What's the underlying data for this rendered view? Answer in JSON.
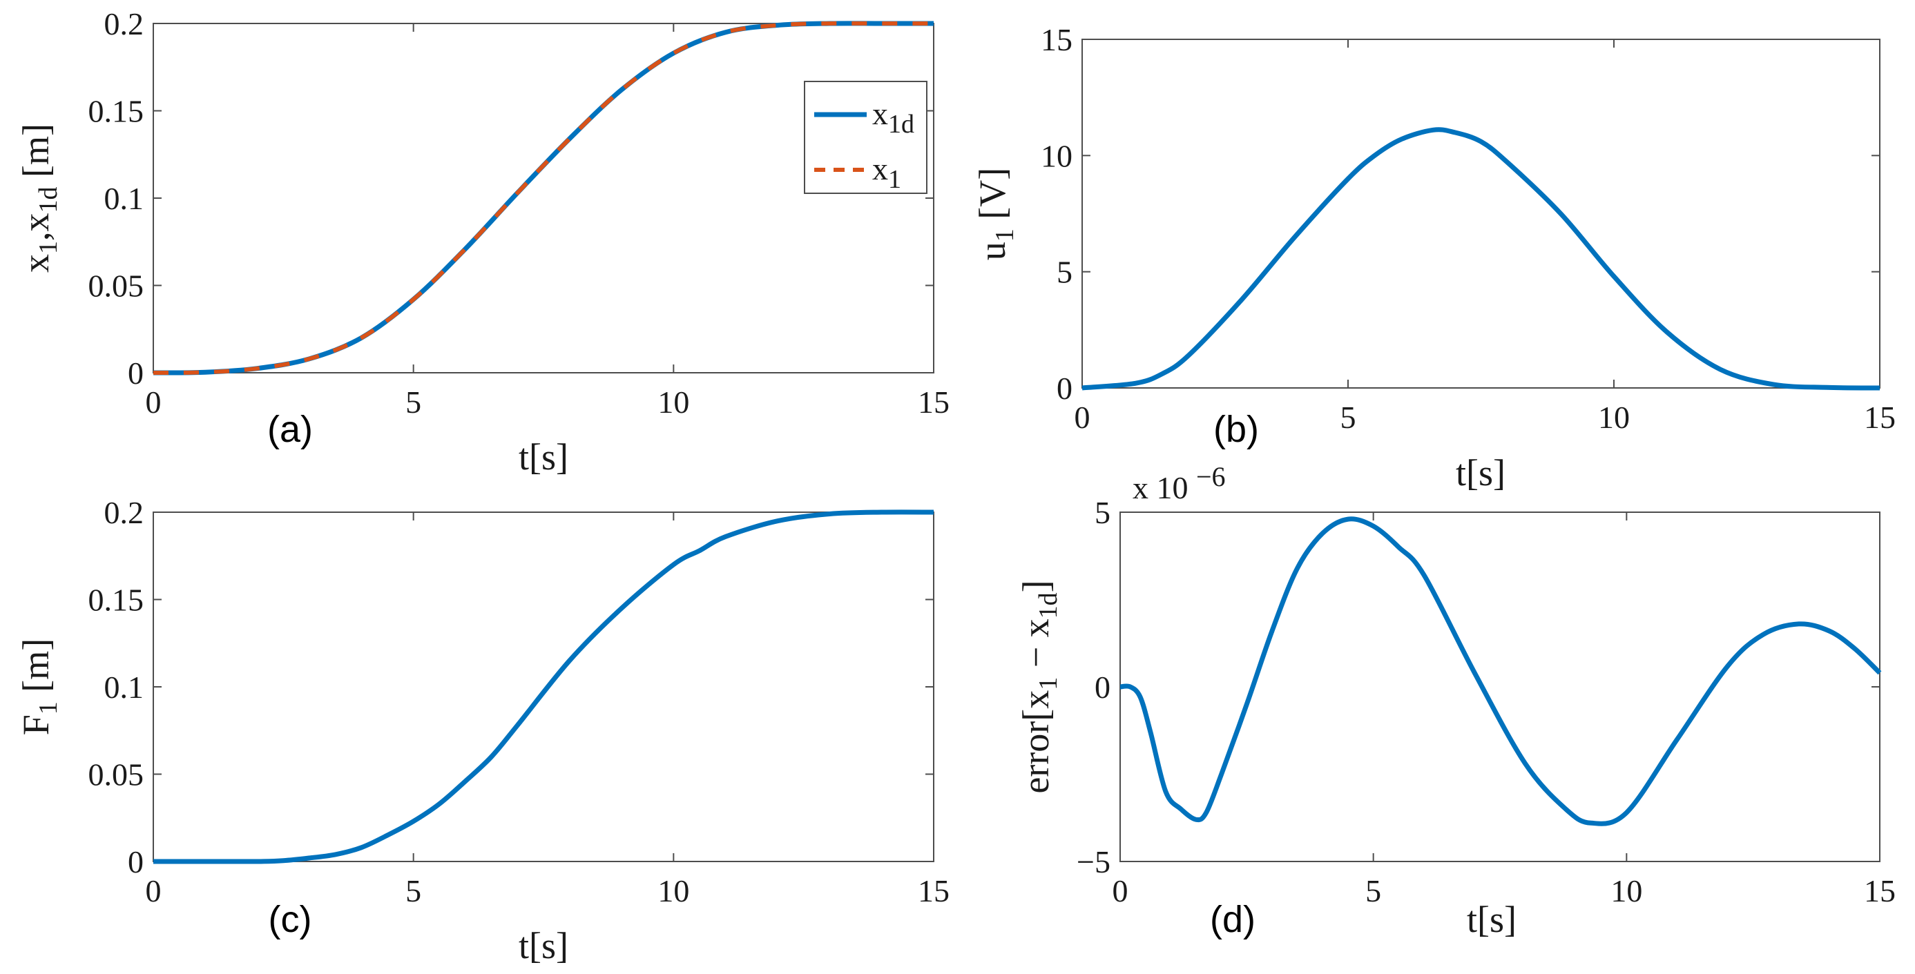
{
  "chart_data": [
    {
      "id": "a",
      "type": "line",
      "panel_label": "(a)",
      "xlabel": "t[s]",
      "ylabel": {
        "parts": [
          [
            "x",
            ""
          ],
          [
            "1",
            "sub"
          ],
          [
            ",x",
            ""
          ],
          [
            "1d",
            "sub"
          ],
          [
            " [m]",
            ""
          ]
        ]
      },
      "xlim": [
        0,
        15
      ],
      "ylim": [
        0,
        0.2
      ],
      "xticks": [
        0,
        5,
        10,
        15
      ],
      "yticks": [
        0,
        0.05,
        0.1,
        0.15,
        0.2
      ],
      "yticklabels": [
        "0",
        "0.05",
        "0.1",
        "0.15",
        "0.2"
      ],
      "grid": false,
      "legend": {
        "position": "top-right",
        "entries": [
          {
            "parts": [
              [
                "x",
                ""
              ],
              [
                "1d",
                "sub"
              ]
            ],
            "series": 0
          },
          {
            "parts": [
              [
                "x",
                ""
              ],
              [
                "1",
                "sub"
              ]
            ],
            "series": 1
          }
        ]
      },
      "series": [
        {
          "name": "x1d",
          "color": "#0072BD",
          "style": "solid",
          "x": [
            0,
            1,
            2,
            3,
            4,
            5,
            6,
            7,
            8,
            9,
            10,
            11,
            12,
            13,
            14,
            15
          ],
          "y": [
            0,
            0.0003,
            0.0025,
            0.008,
            0.02,
            0.042,
            0.071,
            0.103,
            0.134,
            0.162,
            0.183,
            0.195,
            0.199,
            0.2,
            0.2,
            0.2
          ]
        },
        {
          "name": "x1",
          "color": "#D95319",
          "style": "dashed",
          "x": [
            0,
            1,
            2,
            3,
            4,
            5,
            6,
            7,
            8,
            9,
            10,
            11,
            12,
            13,
            14,
            15
          ],
          "y": [
            0,
            0.0003,
            0.0025,
            0.008,
            0.02,
            0.042,
            0.071,
            0.103,
            0.134,
            0.162,
            0.183,
            0.195,
            0.199,
            0.2,
            0.2,
            0.2
          ]
        }
      ]
    },
    {
      "id": "b",
      "type": "line",
      "panel_label": "(b)",
      "xlabel": "t[s]",
      "ylabel": {
        "parts": [
          [
            "u",
            ""
          ],
          [
            "1",
            "sub"
          ],
          [
            " [V]",
            ""
          ]
        ]
      },
      "xlim": [
        0,
        15
      ],
      "ylim": [
        0,
        15
      ],
      "xticks": [
        0,
        5,
        10,
        15
      ],
      "yticks": [
        0,
        5,
        10,
        15
      ],
      "yticklabels": [
        "0",
        "5",
        "10",
        "15"
      ],
      "grid": false,
      "series": [
        {
          "color": "#0072BD",
          "style": "solid",
          "x": [
            0,
            1,
            1.5,
            2,
            3,
            4,
            5,
            5.5,
            6,
            6.6,
            7,
            7.5,
            8,
            9,
            10,
            11,
            12,
            13,
            14,
            15
          ],
          "y": [
            0,
            0.2,
            0.6,
            1.4,
            3.8,
            6.5,
            9.0,
            10.0,
            10.7,
            11.1,
            11.0,
            10.6,
            9.7,
            7.5,
            4.8,
            2.4,
            0.8,
            0.15,
            0.02,
            0
          ]
        }
      ]
    },
    {
      "id": "c",
      "type": "line",
      "panel_label": "(c)",
      "xlabel": "t[s]",
      "ylabel": {
        "parts": [
          [
            "F",
            ""
          ],
          [
            "1",
            "sub"
          ],
          [
            " [m]",
            ""
          ]
        ]
      },
      "xlim": [
        0,
        15
      ],
      "ylim": [
        0,
        0.2
      ],
      "xticks": [
        0,
        5,
        10,
        15
      ],
      "yticks": [
        0,
        0.05,
        0.1,
        0.15,
        0.2
      ],
      "yticklabels": [
        "0",
        "0.05",
        "0.1",
        "0.15",
        "0.2"
      ],
      "grid": false,
      "series": [
        {
          "color": "#0072BD",
          "style": "solid",
          "x": [
            0,
            1,
            2,
            2.5,
            3,
            3.5,
            4,
            4.5,
            5,
            5.5,
            6,
            6.5,
            7,
            8,
            9,
            10,
            10.5,
            11,
            12,
            13,
            14,
            15
          ],
          "y": [
            0,
            0,
            0,
            0.0005,
            0.002,
            0.004,
            0.008,
            0.015,
            0.023,
            0.033,
            0.046,
            0.06,
            0.078,
            0.115,
            0.145,
            0.17,
            0.178,
            0.186,
            0.195,
            0.199,
            0.2,
            0.2
          ]
        }
      ]
    },
    {
      "id": "d",
      "type": "line",
      "panel_label": "(d)",
      "xlabel": "t[s]",
      "ylabel": {
        "parts": [
          [
            "error[x",
            ""
          ],
          [
            "1",
            "sub"
          ],
          [
            " − x",
            ""
          ],
          [
            "1d",
            "sub"
          ],
          [
            "]",
            ""
          ]
        ]
      },
      "exponent_label": "x 10",
      "exponent_power": "−6",
      "xlim": [
        0,
        15
      ],
      "ylim": [
        -5,
        5
      ],
      "xticks": [
        0,
        5,
        10,
        15
      ],
      "yticks": [
        -5,
        0,
        5
      ],
      "yticklabels": [
        "−5",
        "0",
        "5"
      ],
      "grid": false,
      "series": [
        {
          "color": "#0072BD",
          "style": "solid",
          "x": [
            0,
            0.2,
            0.4,
            0.6,
            0.9,
            1.2,
            1.5,
            1.7,
            2.0,
            2.5,
            3.0,
            3.5,
            4.0,
            4.5,
            5.0,
            5.5,
            6.0,
            7.0,
            8.0,
            8.8,
            9.3,
            10.0,
            11.0,
            12.0,
            12.7,
            13.4,
            14.0,
            14.5,
            15.0
          ],
          "y": [
            0,
            0,
            -0.3,
            -1.3,
            -3.0,
            -3.5,
            -3.8,
            -3.6,
            -2.5,
            -0.5,
            1.6,
            3.4,
            4.4,
            4.8,
            4.6,
            4.0,
            3.2,
            0.4,
            -2.2,
            -3.5,
            -3.9,
            -3.6,
            -1.5,
            0.6,
            1.5,
            1.8,
            1.6,
            1.1,
            0.4
          ]
        }
      ]
    }
  ]
}
